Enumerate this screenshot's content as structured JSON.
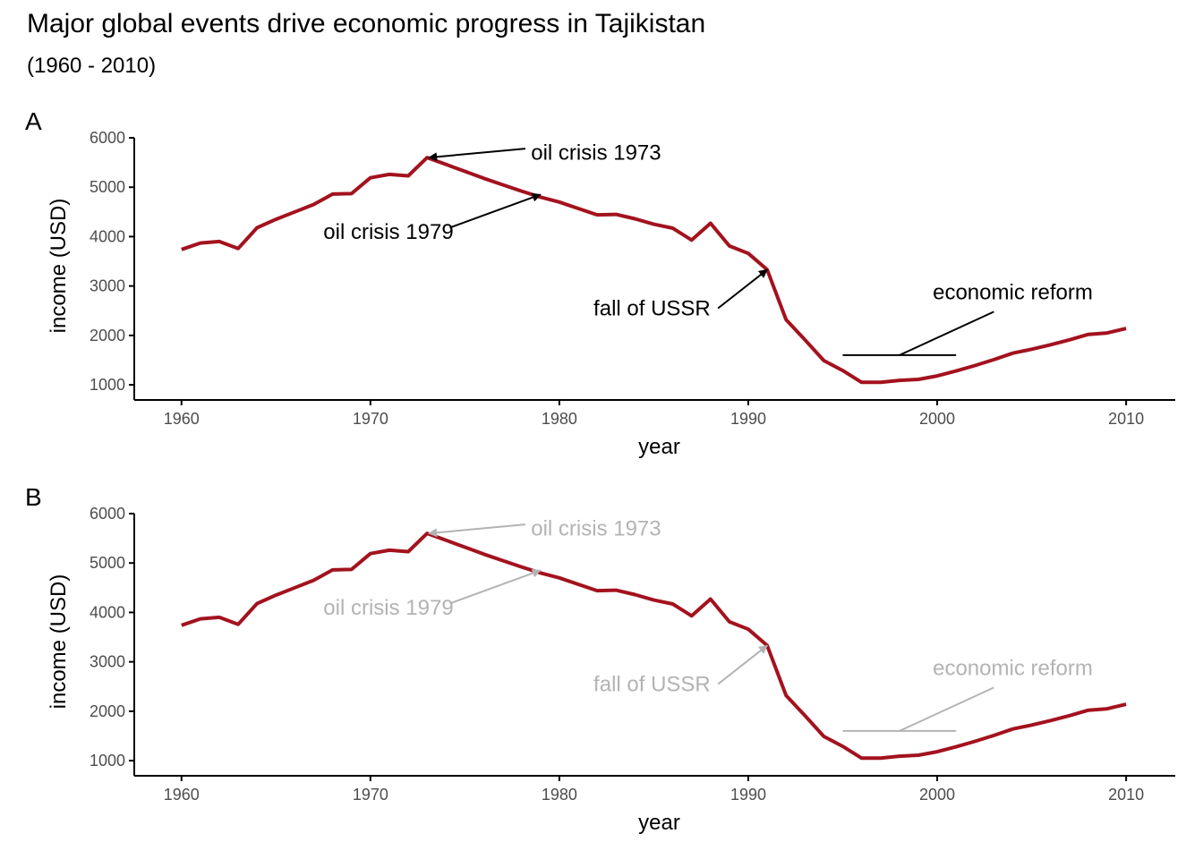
{
  "title": "Major global events drive economic progress in Tajikistan",
  "subtitle": "(1960 - 2010)",
  "colors": {
    "line": "#a3121e",
    "annot_dark": "#000000",
    "annot_light": "#b3b3b3",
    "axis": "#000000",
    "tick_text": "#4d4d4d"
  },
  "chart_data": [
    {
      "panel": "A",
      "type": "line",
      "annotation_style": "dark",
      "xlabel": "year",
      "ylabel": "income (USD)",
      "xlim": [
        1957.4,
        1962.6
      ],
      "ylim": [
        820,
        6000
      ],
      "x_ticks": [
        1960,
        1970,
        1980,
        1990,
        2000,
        2010
      ],
      "y_ticks": [
        1000,
        2000,
        3000,
        4000,
        5000,
        6000
      ],
      "series": [
        {
          "x": [
            1960,
            1961,
            1962,
            1963,
            1964,
            1965,
            1966,
            1967,
            1968,
            1969,
            1970,
            1971,
            1972,
            1973,
            1974,
            1975,
            1976,
            1977,
            1978,
            1979,
            1980,
            1981,
            1982,
            1983,
            1984,
            1985,
            1986,
            1987,
            1988,
            1989,
            1990,
            1991,
            1992,
            1993,
            1994,
            1995,
            1996,
            1997,
            1998,
            1999,
            2000,
            2001,
            2002,
            2003,
            2004,
            2005,
            2006,
            2007,
            2008,
            2009,
            2010
          ],
          "y": [
            3740,
            3870,
            3900,
            3760,
            4180,
            4350,
            4500,
            4650,
            4860,
            4870,
            5190,
            5260,
            5230,
            5600,
            5460,
            5320,
            5180,
            5050,
            4920,
            4800,
            4700,
            4570,
            4440,
            4450,
            4360,
            4250,
            4170,
            3930,
            4270,
            3810,
            3660,
            3330,
            2320,
            1910,
            1490,
            1290,
            1050,
            1050,
            1090,
            1110,
            1180,
            1280,
            1390,
            1510,
            1640,
            1720,
            1810,
            1910,
            2020,
            2050,
            2140
          ]
        }
      ],
      "annotations": [
        {
          "label": "oil crisis 1973",
          "x": 1973,
          "y": 5600
        },
        {
          "label": "oil crisis 1979",
          "x": 1979,
          "y": 4850
        },
        {
          "label": "fall of USSR",
          "x": 1991,
          "y": 3330
        },
        {
          "label": "economic reform",
          "x_start": 1995,
          "x_end": 2001,
          "y": 1600
        }
      ]
    },
    {
      "panel": "B",
      "type": "line",
      "annotation_style": "light",
      "xlabel": "year",
      "ylabel": "income (USD)",
      "xlim": [
        1957.4,
        1962.6
      ],
      "ylim": [
        820,
        6000
      ],
      "x_ticks": [
        1960,
        1970,
        1980,
        1990,
        2000,
        2010
      ],
      "y_ticks": [
        1000,
        2000,
        3000,
        4000,
        5000,
        6000
      ],
      "series": [
        {
          "x": [
            1960,
            1961,
            1962,
            1963,
            1964,
            1965,
            1966,
            1967,
            1968,
            1969,
            1970,
            1971,
            1972,
            1973,
            1974,
            1975,
            1976,
            1977,
            1978,
            1979,
            1980,
            1981,
            1982,
            1983,
            1984,
            1985,
            1986,
            1987,
            1988,
            1989,
            1990,
            1991,
            1992,
            1993,
            1994,
            1995,
            1996,
            1997,
            1998,
            1999,
            2000,
            2001,
            2002,
            2003,
            2004,
            2005,
            2006,
            2007,
            2008,
            2009,
            2010
          ],
          "y": [
            3740,
            3870,
            3900,
            3760,
            4180,
            4350,
            4500,
            4650,
            4860,
            4870,
            5190,
            5260,
            5230,
            5600,
            5460,
            5320,
            5180,
            5050,
            4920,
            4800,
            4700,
            4570,
            4440,
            4450,
            4360,
            4250,
            4170,
            3930,
            4270,
            3810,
            3660,
            3330,
            2320,
            1910,
            1490,
            1290,
            1050,
            1050,
            1090,
            1110,
            1180,
            1280,
            1390,
            1510,
            1640,
            1720,
            1810,
            1910,
            2020,
            2050,
            2140
          ]
        }
      ],
      "annotations": [
        {
          "label": "oil crisis 1973",
          "x": 1973,
          "y": 5600
        },
        {
          "label": "oil crisis 1979",
          "x": 1979,
          "y": 4850
        },
        {
          "label": "fall of USSR",
          "x": 1991,
          "y": 3330
        },
        {
          "label": "economic reform",
          "x_start": 1995,
          "x_end": 2001,
          "y": 1600
        }
      ]
    }
  ]
}
